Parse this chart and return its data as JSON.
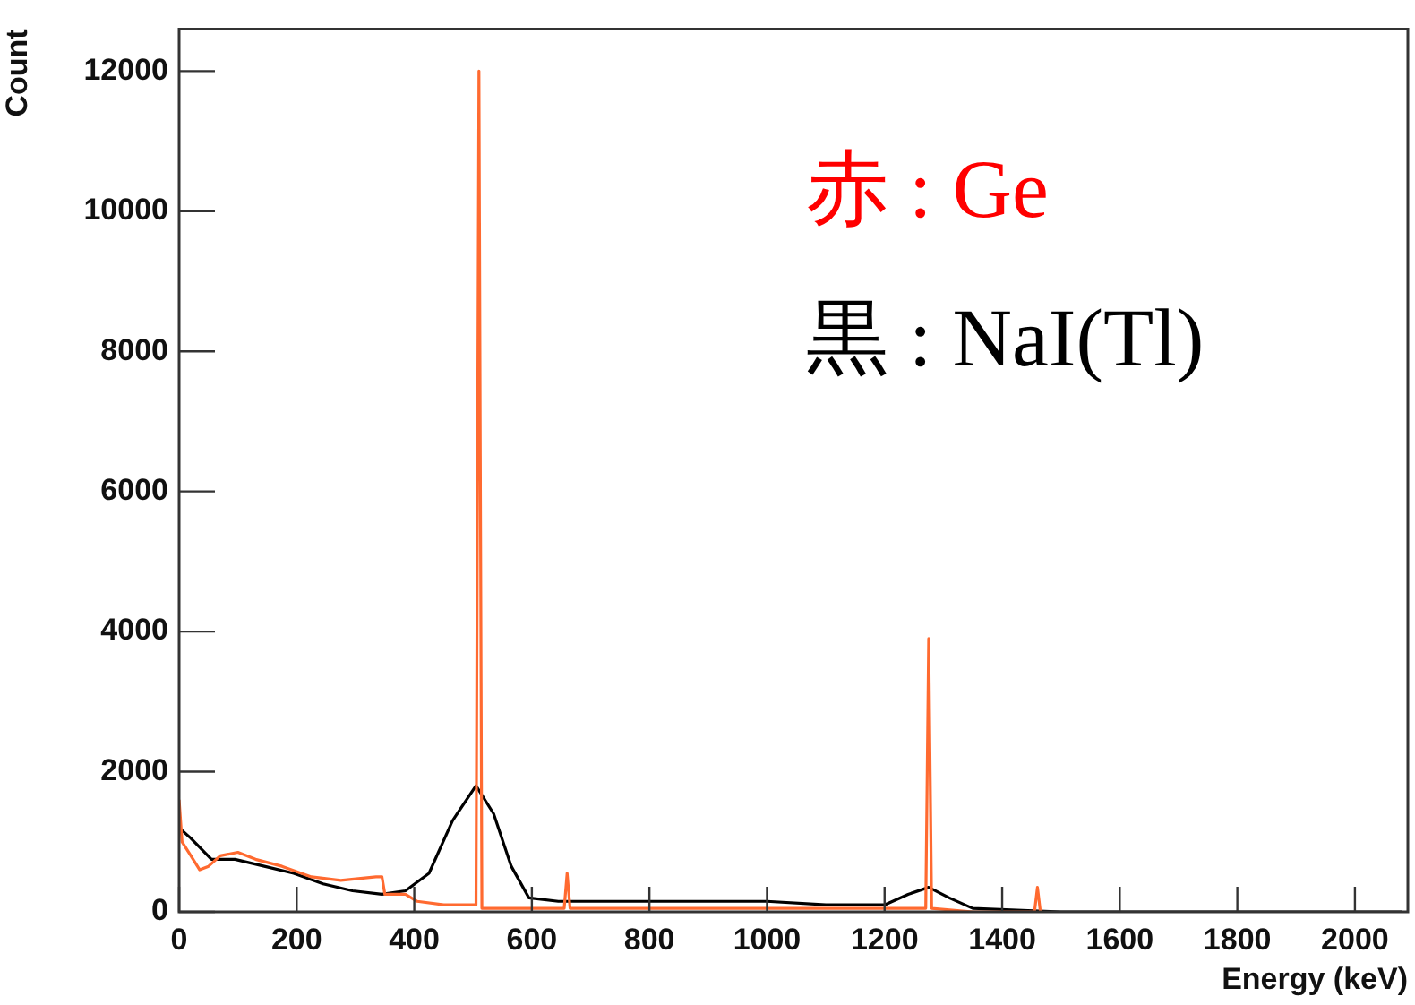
{
  "chart_data": {
    "type": "line",
    "xlabel": "Energy (keV)",
    "ylabel": "Count",
    "xlim": [
      0,
      2090
    ],
    "xticks": [
      0,
      200,
      400,
      600,
      800,
      1000,
      1200,
      1400,
      1600,
      1800,
      2000
    ],
    "ylim": [
      0,
      12600
    ],
    "yticks": [
      0,
      2000,
      4000,
      6000,
      8000,
      10000,
      12000
    ],
    "grid": false,
    "legend": false,
    "marker": "none",
    "line_style": "solid",
    "annotations": [
      "赤 : Ge",
      "黒 : NaI(Tl)"
    ],
    "series": [
      {
        "color": "#ff6a30",
        "x": [
          0,
          5,
          20,
          35,
          50,
          70,
          100,
          130,
          175,
          225,
          275,
          335,
          345,
          350,
          385,
          405,
          450,
          495,
          505,
          510,
          515,
          560,
          655,
          660,
          665,
          900,
          1100,
          1200,
          1270,
          1275,
          1280,
          1350,
          1455,
          1460,
          1465
        ],
        "values": [
          1600,
          1000,
          800,
          600,
          650,
          800,
          850,
          750,
          650,
          500,
          450,
          500,
          500,
          250,
          250,
          150,
          100,
          100,
          100,
          12000,
          50,
          50,
          50,
          550,
          50,
          50,
          50,
          50,
          50,
          3900,
          50,
          0,
          0,
          350,
          0
        ]
      },
      {
        "color": "#000000",
        "x": [
          0,
          20,
          55,
          95,
          145,
          195,
          245,
          295,
          345,
          385,
          425,
          465,
          505,
          535,
          565,
          595,
          645,
          800,
          1000,
          1100,
          1150,
          1200,
          1240,
          1275,
          1310,
          1350,
          1500,
          1800,
          2080
        ],
        "values": [
          1200,
          1050,
          750,
          750,
          650,
          550,
          400,
          300,
          250,
          300,
          550,
          1300,
          1800,
          1400,
          650,
          200,
          150,
          150,
          150,
          100,
          100,
          100,
          250,
          350,
          200,
          50,
          0,
          0,
          0
        ]
      }
    ]
  }
}
